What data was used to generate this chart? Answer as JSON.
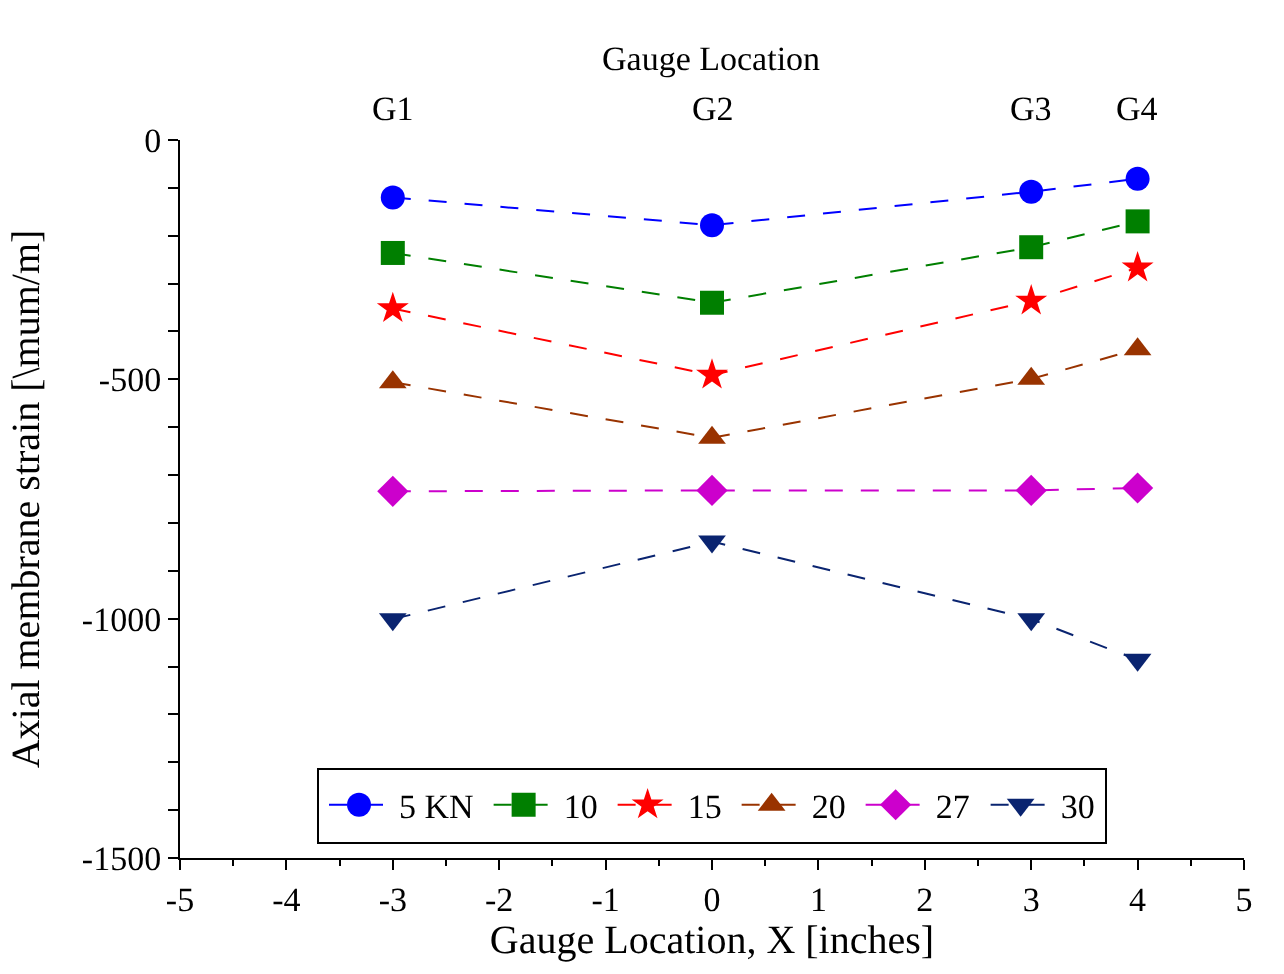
{
  "chart_data": {
    "type": "line",
    "xlabel": "Gauge Location, X [inches]",
    "ylabel": "Axial membrane strain [\\mum/m]",
    "annotations": [
      "Gauge Location",
      "G1",
      "G2",
      "G3",
      "G4"
    ],
    "x": [
      -3,
      0,
      3,
      4
    ],
    "xlim": [
      -5,
      5
    ],
    "xticks": [
      -5,
      -4,
      -3,
      -2,
      -1,
      0,
      1,
      2,
      3,
      4,
      5
    ],
    "ylim": [
      -1500,
      0
    ],
    "yticks": [
      -1500,
      -1000,
      -500,
      0
    ],
    "legend": "bottom",
    "line_style": "dashed",
    "series": [
      {
        "name": "5 KN",
        "color": "#0000ff",
        "marker": "circle",
        "values": [
          -120,
          -178,
          -108,
          -81
        ]
      },
      {
        "name": "10",
        "color": "#007f00",
        "marker": "square",
        "values": [
          -236,
          -340,
          -224,
          -170
        ]
      },
      {
        "name": "15",
        "color": "#ff0000",
        "marker": "star",
        "values": [
          -352,
          -491,
          -336,
          -267
        ]
      },
      {
        "name": "20",
        "color": "#993300",
        "marker": "triangle",
        "values": [
          -506,
          -622,
          -499,
          -437
        ]
      },
      {
        "name": "27",
        "color": "#cc00cc",
        "marker": "diamond",
        "values": [
          -734,
          -732,
          -732,
          -727
        ]
      },
      {
        "name": "30",
        "color": "#0a2470",
        "marker": "triangle-down",
        "values": [
          -1001,
          -839,
          -1001,
          -1086
        ]
      }
    ]
  }
}
